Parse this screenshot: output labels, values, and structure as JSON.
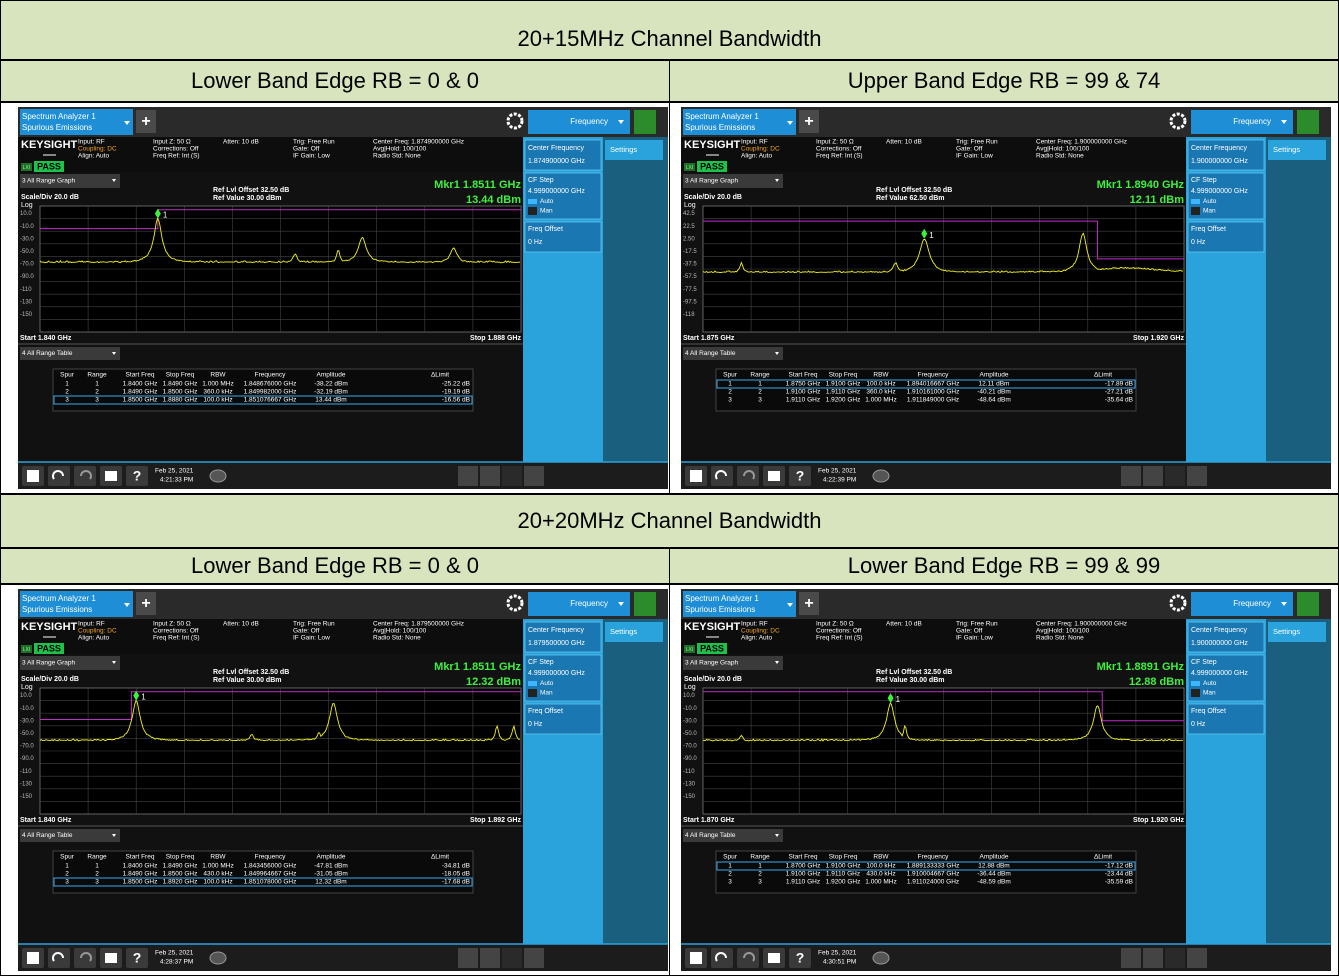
{
  "common": {
    "app_title": "Spectrum Analyzer 1",
    "app_mode": "Spurious Emissions",
    "plus": "+",
    "menu": "Frequency",
    "settings": "Settings",
    "brand": "KEYSIGHT",
    "status_1": [
      "Input: RF",
      "Coupling: DC",
      "Align: Auto"
    ],
    "status_2": [
      "Input Z: 50 Ω",
      "Corrections: Off",
      "Freq Ref: Int (S)"
    ],
    "status_3": "Atten: 10 dB",
    "status_4": [
      "Trig: Free Run",
      "Gate: Off",
      "IF Gain: Low"
    ],
    "status_5": [
      "Avg|Hold: 100/100",
      "Radio Std: None"
    ],
    "lxi": "LXI",
    "pass": "PASS",
    "graph_menu": "3 All Range Graph",
    "scale": "Scale/Div 20.0 dB",
    "log": "Log",
    "ref_offset": "Ref Lvl Offset 32.50 dB",
    "marker_id": "1",
    "table_menu": "4 All Range Table",
    "table_header": [
      "Spur",
      "Range",
      "Start Freq",
      "Stop Freq",
      "RBW",
      "Frequency",
      "Amplitude",
      "ΔLimit"
    ],
    "center_freq_label": "Center Frequency",
    "cf_step_label": "CF Step",
    "cf_step": "4.999000000 GHz",
    "auto": "Auto",
    "man": "Man",
    "freq_offset_label": "Freq Offset",
    "freq_offset": "0 Hz",
    "help": "?",
    "date": "Feb 25, 2021"
  },
  "sections": [
    {
      "title": "20+15MHz Channel Bandwidth",
      "panels": [
        {
          "heading": "Lower Band Edge RB = 0 & 0",
          "center_freq_status": "Center Freq: 1.874900000 GHz",
          "center_freq": "1.874900000 GHz",
          "ref_value": "Ref Value 30.00 dBm",
          "marker_freq": "Mkr1  1.8511 GHz",
          "marker_amp": "13.44 dBm",
          "yticks": [
            "10.0",
            "-10.0",
            "-30.0",
            "-50.0",
            "-70.0",
            "-90.0",
            "-110",
            "-130",
            "-150"
          ],
          "start": "Start 1.840 GHz",
          "stop": "Stop 1.888 GHz",
          "selected_row": 2,
          "rows": [
            [
              "1",
              "1",
              "1.8400 GHz",
              "1.8490 GHz",
              "1.000 MHz",
              "1.848676000 GHz",
              "-38.22 dBm",
              "-25.22 dB"
            ],
            [
              "2",
              "2",
              "1.8490 GHz",
              "1.8500 GHz",
              "360.0 kHz",
              "1.849982000 GHz",
              "-32.19 dBm",
              "-19.19 dB"
            ],
            [
              "3",
              "3",
              "1.8500 GHz",
              "1.8880 GHz",
              "100.0 kHz",
              "1.851076667 GHz",
              "13.44 dBm",
              "-16.56 dB"
            ]
          ],
          "time": "4:21:33 PM"
        },
        {
          "heading": "Upper Band Edge RB = 99 & 74",
          "center_freq_status": "Center Freq: 1.900000000 GHz",
          "center_freq": "1.900000000 GHz",
          "ref_value": "Ref Value 62.50 dBm",
          "marker_freq": "Mkr1  1.8940 GHz",
          "marker_amp": "12.11 dBm",
          "yticks": [
            "42.5",
            "22.5",
            "2.50",
            "-17.5",
            "-37.5",
            "-57.5",
            "-77.5",
            "-97.5",
            "-118"
          ],
          "start": "Start 1.875 GHz",
          "stop": "Stop 1.920 GHz",
          "selected_row": 0,
          "rows": [
            [
              "1",
              "1",
              "1.8750 GHz",
              "1.9100 GHz",
              "100.0 kHz",
              "1.894016667 GHz",
              "12.11 dBm",
              "-17.89 dB"
            ],
            [
              "2",
              "2",
              "1.9100 GHz",
              "1.9110 GHz",
              "360.0 kHz",
              "1.910161000 GHz",
              "-40.21 dBm",
              "-27.21 dB"
            ],
            [
              "3",
              "3",
              "1.9110 GHz",
              "1.9200 GHz",
              "1.000 MHz",
              "1.911849000 GHz",
              "-48.64 dBm",
              "-35.64 dB"
            ]
          ],
          "time": "4:22:39 PM"
        }
      ]
    },
    {
      "title": "20+20MHz Channel Bandwidth",
      "panels": [
        {
          "heading": "Lower Band Edge RB = 0 & 0",
          "center_freq_status": "Center Freq: 1.879500000 GHz",
          "center_freq": "1.879500000 GHz",
          "ref_value": "Ref Value 30.00 dBm",
          "marker_freq": "Mkr1  1.8511 GHz",
          "marker_amp": "12.32 dBm",
          "yticks": [
            "10.0",
            "-10.0",
            "-30.0",
            "-50.0",
            "-70.0",
            "-90.0",
            "-110",
            "-130",
            "-150"
          ],
          "start": "Start 1.840 GHz",
          "stop": "Stop 1.892 GHz",
          "selected_row": 2,
          "rows": [
            [
              "1",
              "1",
              "1.8400 GHz",
              "1.8490 GHz",
              "1.000 MHz",
              "1.843456000 GHz",
              "-47.81 dBm",
              "-34.81 dB"
            ],
            [
              "2",
              "2",
              "1.8490 GHz",
              "1.8500 GHz",
              "430.0 kHz",
              "1.849964667 GHz",
              "-31.05 dBm",
              "-18.05 dB"
            ],
            [
              "3",
              "3",
              "1.8500 GHz",
              "1.8920 GHz",
              "100.0 kHz",
              "1.851078000 GHz",
              "12.32 dBm",
              "-17.68 dB"
            ]
          ],
          "time": "4:28:37 PM"
        },
        {
          "heading": "Lower Band Edge RB = 99 & 99",
          "center_freq_status": "Center Freq: 1.900000000 GHz",
          "center_freq": "1.900000000 GHz",
          "ref_value": "Ref Value 30.00 dBm",
          "marker_freq": "Mkr1  1.8891 GHz",
          "marker_amp": "12.88 dBm",
          "yticks": [
            "10.0",
            "-10.0",
            "-30.0",
            "-50.0",
            "-70.0",
            "-90.0",
            "-110",
            "-130",
            "-150"
          ],
          "start": "Start 1.870 GHz",
          "stop": "Stop 1.920 GHz",
          "selected_row": 0,
          "rows": [
            [
              "1",
              "1",
              "1.8700 GHz",
              "1.9100 GHz",
              "100.0 kHz",
              "1.889133333 GHz",
              "12.88 dBm",
              "-17.12 dB"
            ],
            [
              "2",
              "2",
              "1.9100 GHz",
              "1.9110 GHz",
              "430.0 kHz",
              "1.910004667 GHz",
              "-36.44 dBm",
              "-23.44 dB"
            ],
            [
              "3",
              "3",
              "1.9110 GHz",
              "1.9200 GHz",
              "1.000 MHz",
              "1.911024000 GHz",
              "-48.59 dBm",
              "-35.59 dB"
            ]
          ],
          "time": "4:30:51 PM"
        }
      ]
    }
  ]
}
